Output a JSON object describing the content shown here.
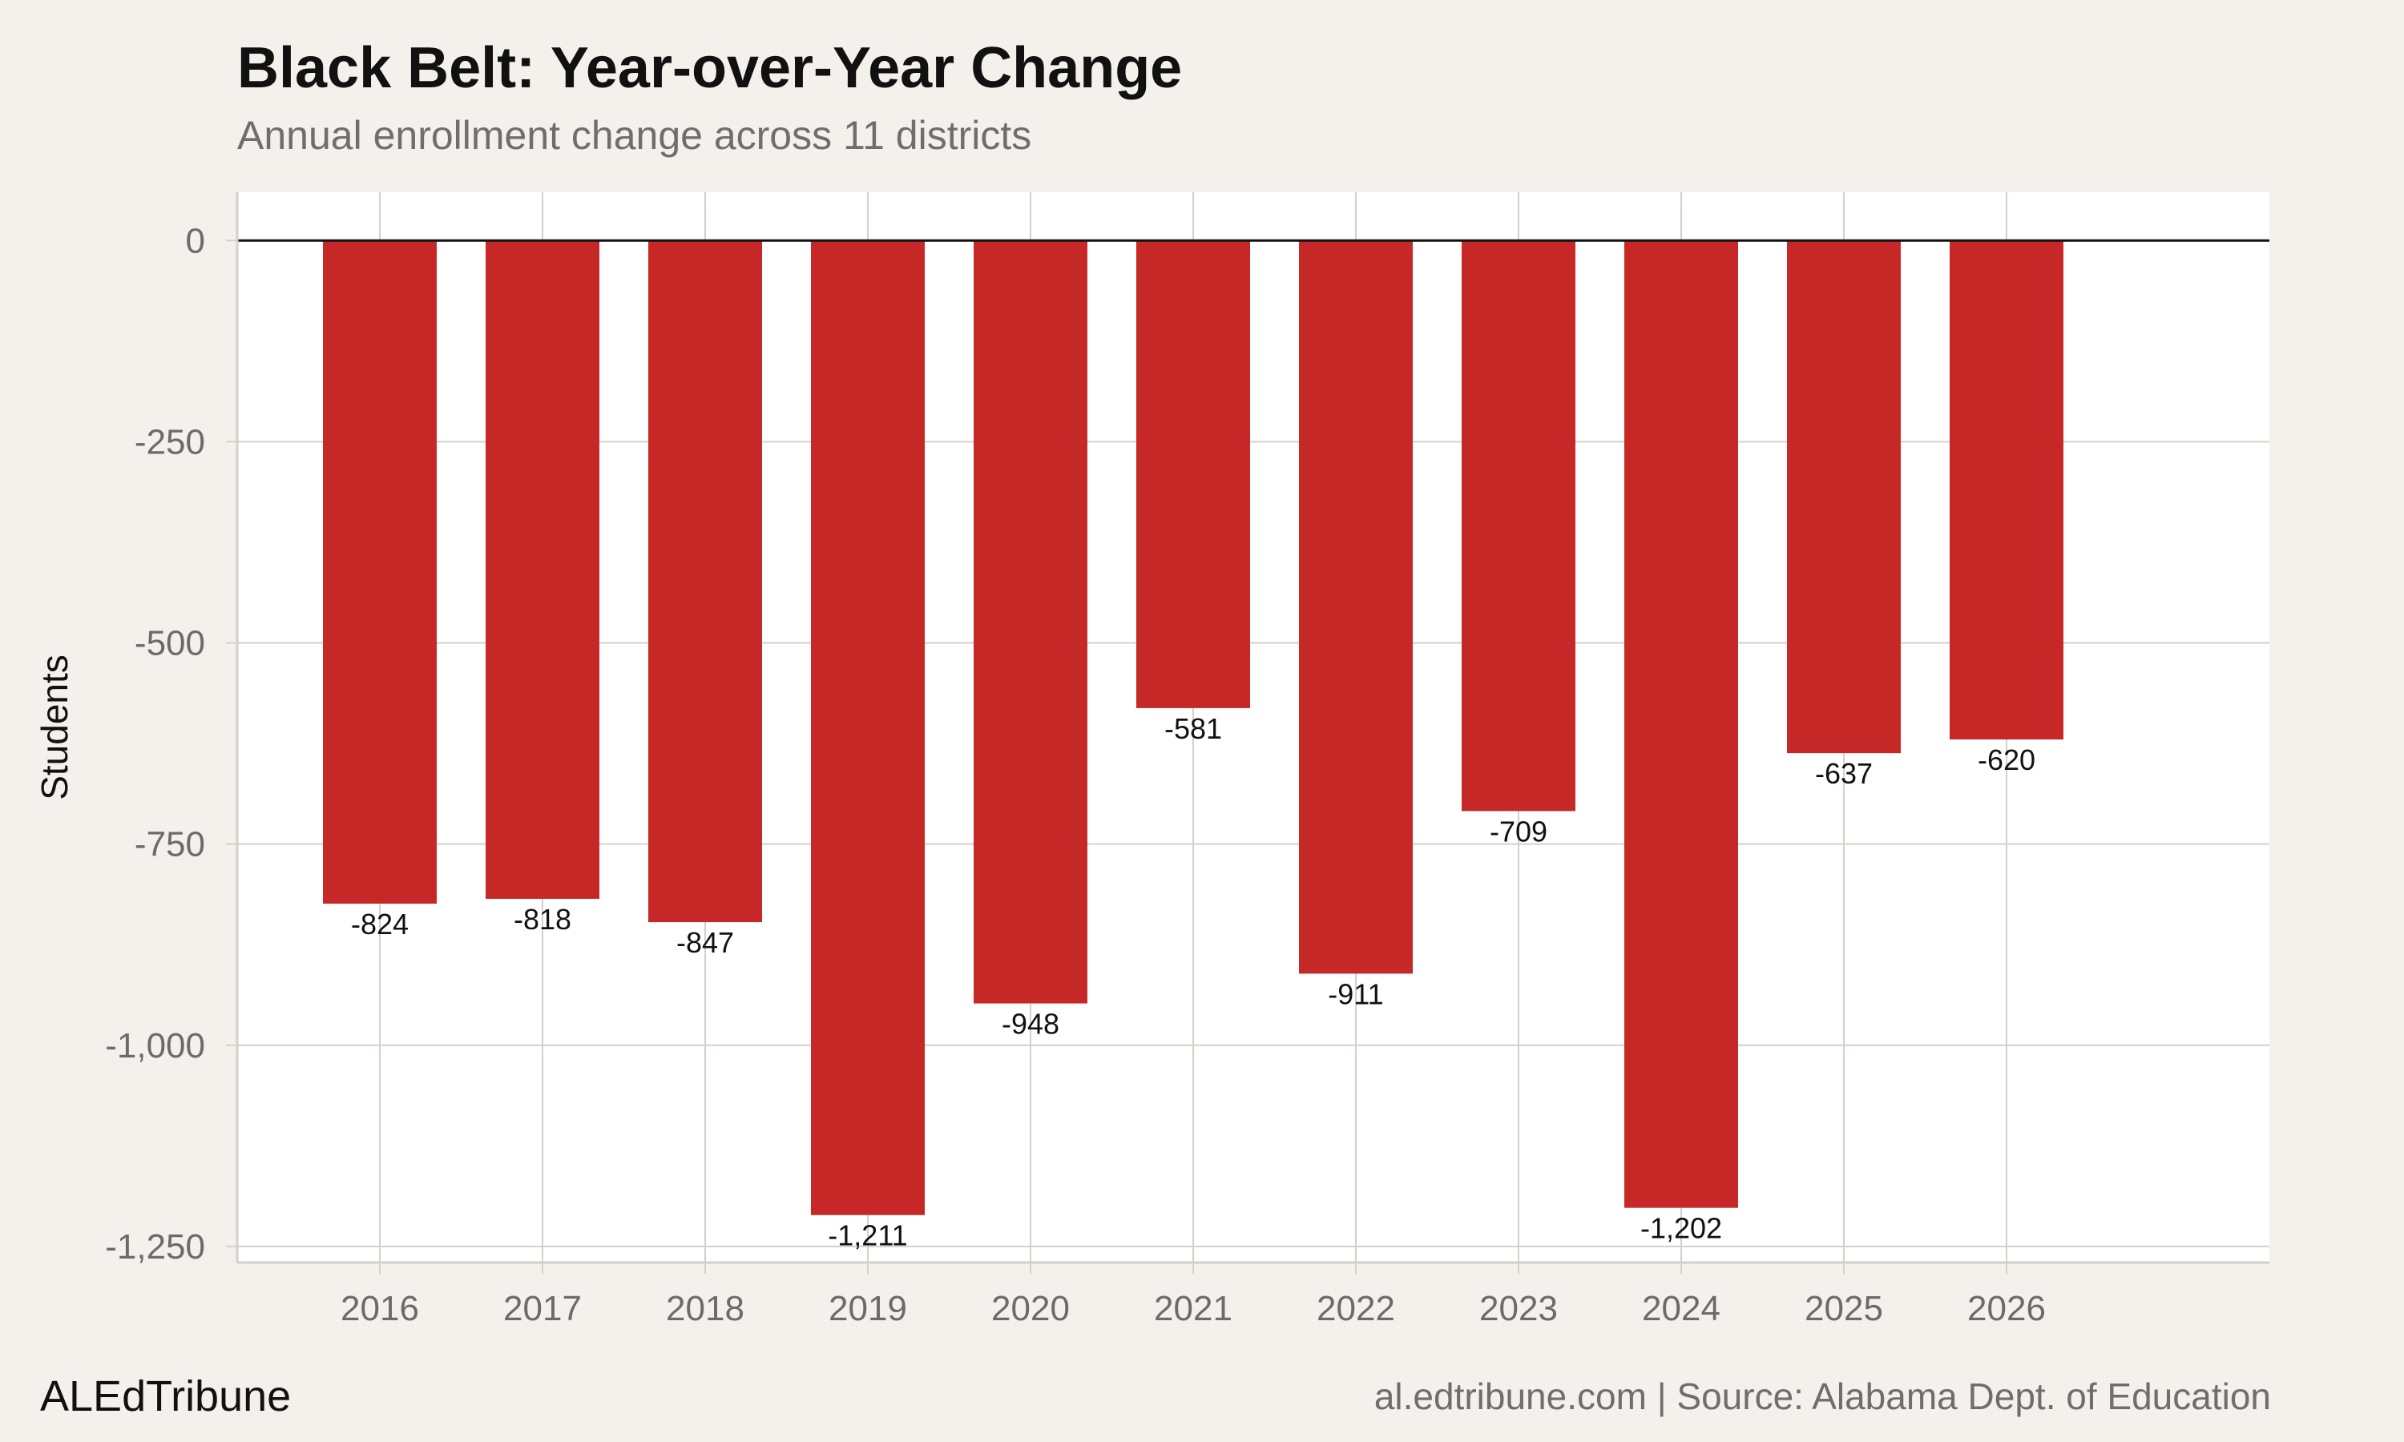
{
  "colors": {
    "background": "#f4f1ec",
    "panel": "#ffffff",
    "bar": "#c62828",
    "grid": "#d3d0c8",
    "zero_line": "#111111"
  },
  "brand": "ALEdTribune",
  "footer": "al.edtribune.com | Source: Alabama Dept. of Education",
  "chart_data": {
    "type": "bar",
    "title": "Black Belt: Year-over-Year Change",
    "subtitle": "Annual enrollment change across 11 districts",
    "xlabel": "",
    "ylabel": "Students",
    "categories": [
      "2016",
      "2017",
      "2018",
      "2019",
      "2020",
      "2021",
      "2022",
      "2023",
      "2024",
      "2025",
      "2026"
    ],
    "values": [
      -824,
      -818,
      -847,
      -1211,
      -948,
      -581,
      -911,
      -709,
      -1202,
      -637,
      -620
    ],
    "value_labels": [
      "-824",
      "-818",
      "-847",
      "-1,211",
      "-948",
      "-581",
      "-911",
      "-709",
      "-1,202",
      "-637",
      "-620"
    ],
    "yticks": [
      0,
      -250,
      -500,
      -750,
      -1000,
      -1250
    ],
    "ytick_labels": [
      "0",
      "-250",
      "-500",
      "-750",
      "-1,000",
      "-1,250"
    ],
    "ylim": [
      -1270,
      60
    ],
    "grid": true,
    "legend": "none"
  }
}
